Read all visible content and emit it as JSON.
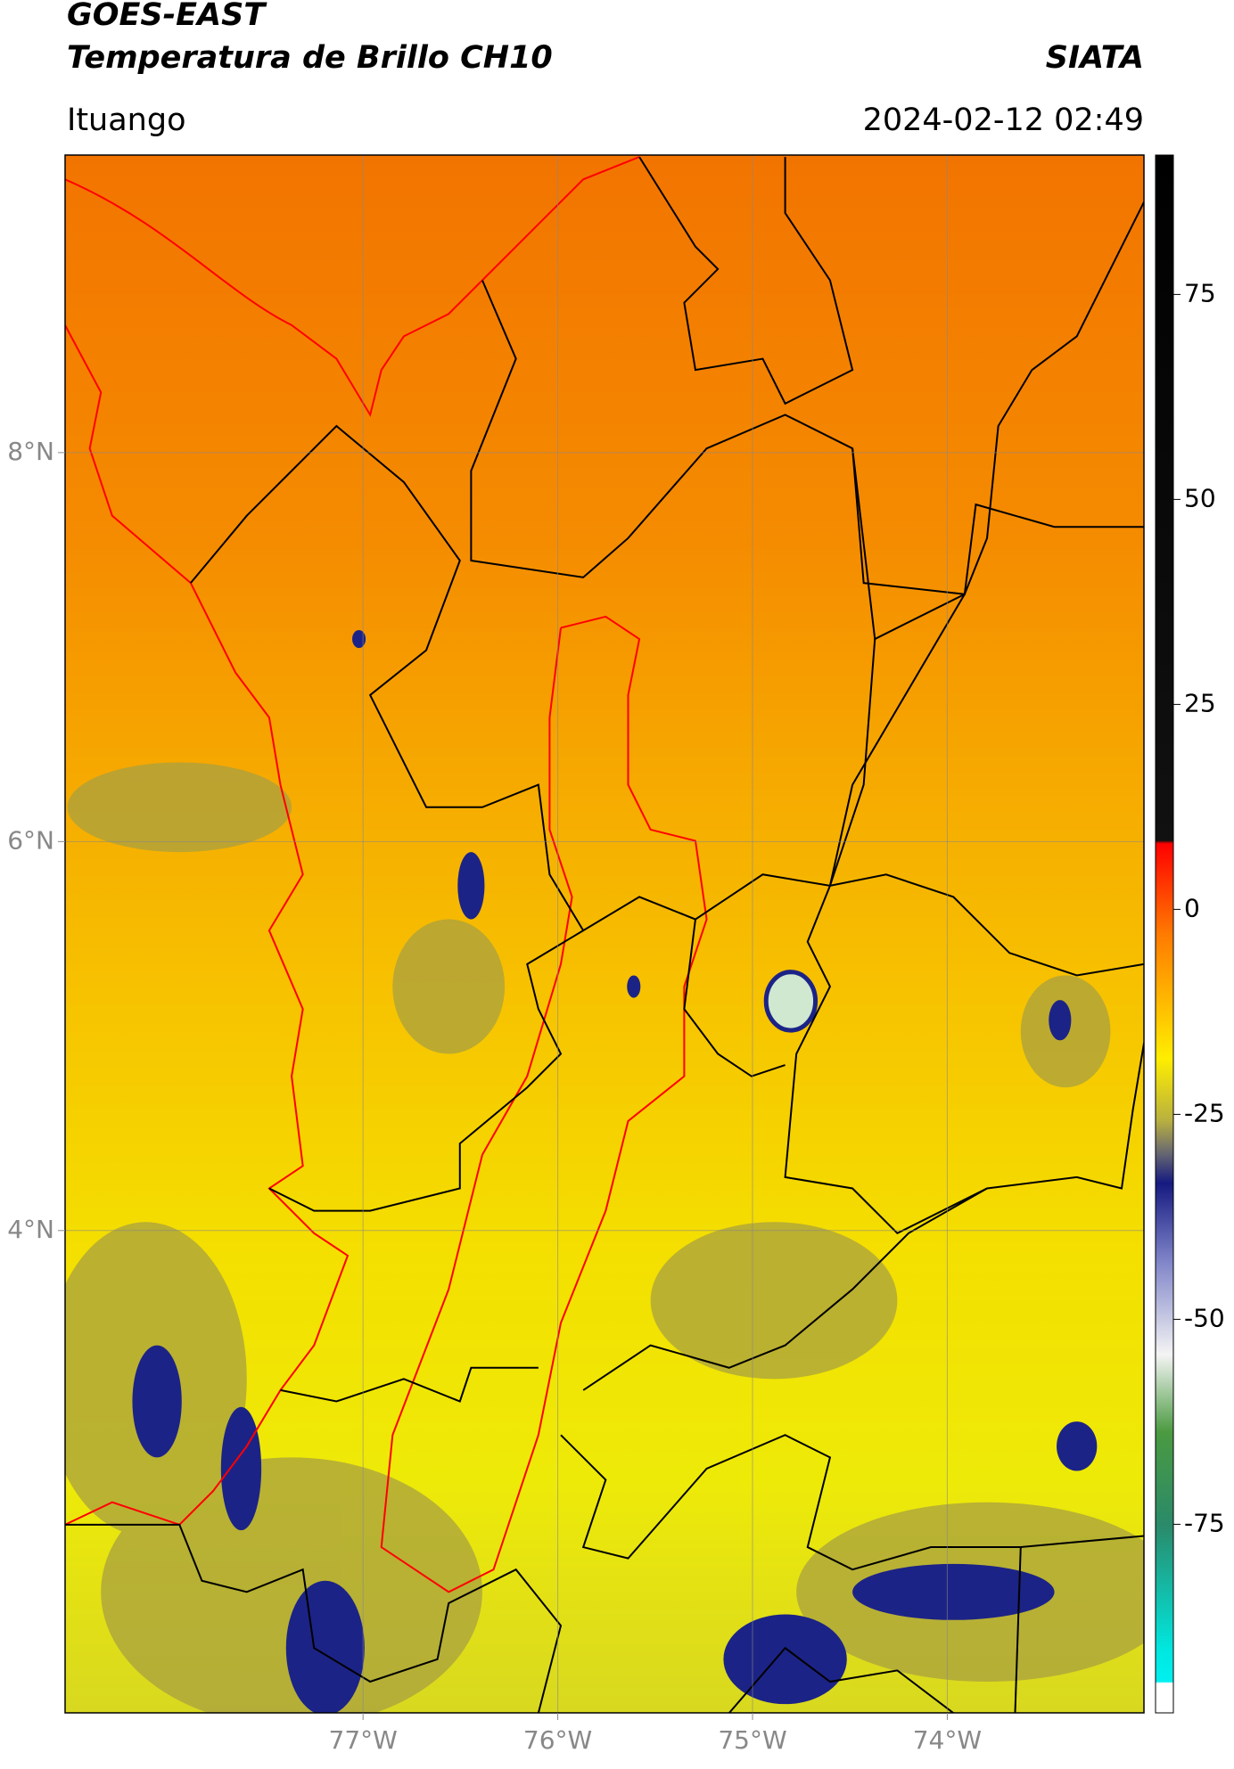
{
  "chart_data": {
    "type": "map",
    "title": "GOES-EAST",
    "subtitle": "Temperatura de Brillo CH10",
    "source": "SIATA",
    "location": "Ituango",
    "datetime": "2024-02-12 02:49",
    "xlim": [
      -78.53,
      -72.99
    ],
    "ylim": [
      1.52,
      9.53
    ],
    "xticks": [
      {
        "value": -77,
        "label": "77°W"
      },
      {
        "value": -76,
        "label": "76°W"
      },
      {
        "value": -75,
        "label": "75°W"
      },
      {
        "value": -74,
        "label": "74°W"
      }
    ],
    "yticks": [
      {
        "value": 8,
        "label": "8°N"
      },
      {
        "value": 6,
        "label": "6°N"
      },
      {
        "value": 4,
        "label": "4°N"
      }
    ],
    "grid": true,
    "colorbar": {
      "lim": [
        -98,
        92
      ],
      "ticks": [
        75,
        50,
        25,
        0,
        -25,
        -50,
        -75
      ]
    }
  }
}
